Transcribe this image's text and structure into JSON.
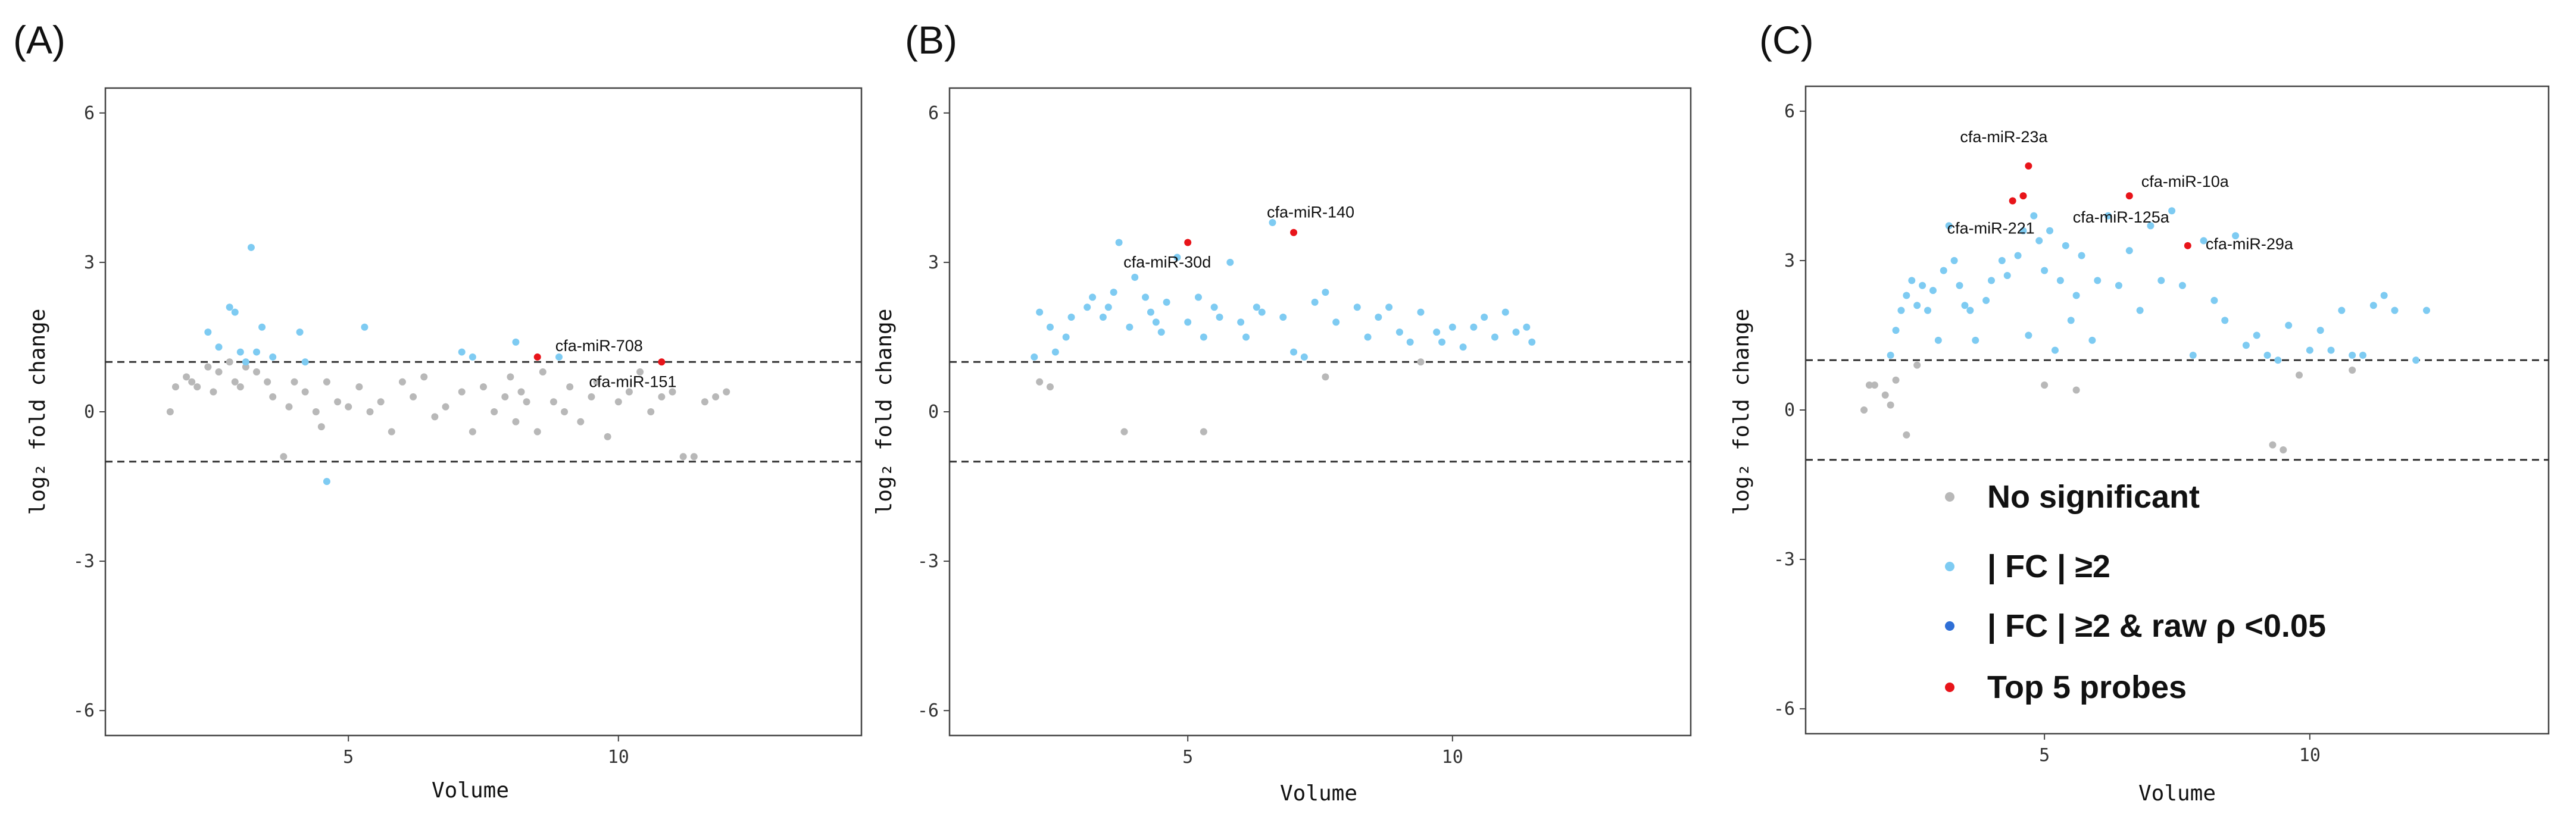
{
  "colors": {
    "no_significant": "#b8b8b8",
    "fc2": "#7ecbf2",
    "fc2_p": "#2f6fd6",
    "top5": "#e8141a"
  },
  "legend": {
    "items": [
      {
        "label": "No significant",
        "color": "#b8b8b8"
      },
      {
        "label": "| FC | ≥2",
        "color": "#7ecbf2"
      },
      {
        "label": "| FC | ≥2 & raw ρ <0.05",
        "color": "#2f6fd6"
      },
      {
        "label": "Top 5 probes",
        "color": "#e8141a"
      }
    ]
  },
  "chart_data": [
    {
      "type": "scatter",
      "panel": "(A)",
      "title": "",
      "xlabel": "Volume",
      "ylabel": "log₂ fold change",
      "xlim": [
        0.5,
        14.5
      ],
      "ylim": [
        -6.5,
        6.5
      ],
      "xticks": [
        5,
        10
      ],
      "yticks": [
        6,
        3,
        0,
        -3,
        -6
      ],
      "hlines": [
        1,
        -1
      ],
      "series": [
        {
          "name": "No significant",
          "color": "#b8b8b8",
          "points": [
            [
              1.7,
              0.0
            ],
            [
              1.8,
              0.5
            ],
            [
              2.0,
              0.7
            ],
            [
              2.1,
              0.6
            ],
            [
              2.2,
              0.5
            ],
            [
              2.4,
              0.9
            ],
            [
              2.5,
              0.4
            ],
            [
              2.6,
              0.8
            ],
            [
              2.8,
              1.0
            ],
            [
              2.9,
              0.6
            ],
            [
              3.0,
              0.5
            ],
            [
              3.1,
              0.9
            ],
            [
              3.3,
              0.8
            ],
            [
              3.5,
              0.6
            ],
            [
              3.6,
              0.3
            ],
            [
              3.8,
              -0.9
            ],
            [
              3.9,
              0.1
            ],
            [
              4.0,
              0.6
            ],
            [
              4.2,
              0.4
            ],
            [
              4.4,
              0.0
            ],
            [
              4.5,
              -0.3
            ],
            [
              4.6,
              0.6
            ],
            [
              4.8,
              0.2
            ],
            [
              5.0,
              0.1
            ],
            [
              5.2,
              0.5
            ],
            [
              5.4,
              0.0
            ],
            [
              5.6,
              0.2
            ],
            [
              5.8,
              -0.4
            ],
            [
              6.0,
              0.6
            ],
            [
              6.2,
              0.3
            ],
            [
              6.4,
              0.7
            ],
            [
              6.6,
              -0.1
            ],
            [
              6.8,
              0.1
            ],
            [
              7.1,
              0.4
            ],
            [
              7.3,
              -0.4
            ],
            [
              7.5,
              0.5
            ],
            [
              7.7,
              0.0
            ],
            [
              7.9,
              0.3
            ],
            [
              8.0,
              0.7
            ],
            [
              8.1,
              -0.2
            ],
            [
              8.2,
              0.4
            ],
            [
              8.3,
              0.2
            ],
            [
              8.5,
              -0.4
            ],
            [
              8.6,
              0.8
            ],
            [
              8.8,
              0.2
            ],
            [
              9.0,
              0.0
            ],
            [
              9.1,
              0.5
            ],
            [
              9.3,
              -0.2
            ],
            [
              9.5,
              0.3
            ],
            [
              9.6,
              0.6
            ],
            [
              9.8,
              -0.5
            ],
            [
              10.0,
              0.2
            ],
            [
              10.2,
              0.4
            ],
            [
              10.4,
              0.8
            ],
            [
              10.6,
              0.0
            ],
            [
              10.8,
              0.3
            ],
            [
              11.0,
              0.4
            ],
            [
              11.2,
              -0.9
            ],
            [
              11.4,
              -0.9
            ],
            [
              11.6,
              0.2
            ],
            [
              11.8,
              0.3
            ],
            [
              12.0,
              0.4
            ]
          ]
        },
        {
          "name": "| FC | ≥2",
          "color": "#7ecbf2",
          "points": [
            [
              2.4,
              1.6
            ],
            [
              2.6,
              1.3
            ],
            [
              2.8,
              2.1
            ],
            [
              2.9,
              2.0
            ],
            [
              3.0,
              1.2
            ],
            [
              3.1,
              1.0
            ],
            [
              3.2,
              3.3
            ],
            [
              3.3,
              1.2
            ],
            [
              3.4,
              1.7
            ],
            [
              3.6,
              1.1
            ],
            [
              4.1,
              1.6
            ],
            [
              4.2,
              1.0
            ],
            [
              4.6,
              -1.4
            ],
            [
              5.3,
              1.7
            ],
            [
              7.1,
              1.2
            ],
            [
              7.3,
              1.1
            ],
            [
              8.1,
              1.4
            ],
            [
              8.9,
              1.1
            ]
          ]
        },
        {
          "name": "Top 5 probes",
          "color": "#e8141a",
          "points": [
            [
              8.5,
              1.1
            ],
            [
              10.8,
              1.0
            ]
          ]
        }
      ],
      "annotations": [
        {
          "text": "cfa-miR-708",
          "x": 8.5,
          "y": 1.1
        },
        {
          "text": "cfa-miR-151",
          "x": 10.8,
          "y": 1.0
        }
      ]
    },
    {
      "type": "scatter",
      "panel": "(B)",
      "title": "",
      "xlabel": "Volume",
      "ylabel": "log₂ fold change",
      "xlim": [
        0.5,
        14.5
      ],
      "ylim": [
        -6.5,
        6.5
      ],
      "xticks": [
        5,
        10
      ],
      "yticks": [
        6,
        3,
        0,
        -3,
        -6
      ],
      "hlines": [
        1,
        -1
      ],
      "series": [
        {
          "name": "No significant",
          "color": "#b8b8b8",
          "points": [
            [
              2.2,
              0.6
            ],
            [
              2.4,
              0.5
            ],
            [
              3.8,
              -0.4
            ],
            [
              5.3,
              -0.4
            ],
            [
              7.6,
              0.7
            ],
            [
              9.4,
              1.0
            ]
          ]
        },
        {
          "name": "| FC | ≥2",
          "color": "#7ecbf2",
          "points": [
            [
              2.1,
              1.1
            ],
            [
              2.2,
              2.0
            ],
            [
              2.4,
              1.7
            ],
            [
              2.5,
              1.2
            ],
            [
              2.7,
              1.5
            ],
            [
              2.8,
              1.9
            ],
            [
              3.1,
              2.1
            ],
            [
              3.2,
              2.3
            ],
            [
              3.4,
              1.9
            ],
            [
              3.5,
              2.1
            ],
            [
              3.6,
              2.4
            ],
            [
              3.7,
              3.4
            ],
            [
              3.9,
              1.7
            ],
            [
              4.0,
              2.7
            ],
            [
              4.2,
              2.3
            ],
            [
              4.3,
              2.0
            ],
            [
              4.4,
              1.8
            ],
            [
              4.5,
              1.6
            ],
            [
              4.6,
              2.2
            ],
            [
              4.8,
              3.1
            ],
            [
              5.0,
              1.8
            ],
            [
              5.2,
              2.3
            ],
            [
              5.3,
              1.5
            ],
            [
              5.5,
              2.1
            ],
            [
              5.6,
              1.9
            ],
            [
              5.8,
              3.0
            ],
            [
              6.0,
              1.8
            ],
            [
              6.1,
              1.5
            ],
            [
              6.3,
              2.1
            ],
            [
              6.4,
              2.0
            ],
            [
              6.6,
              3.8
            ],
            [
              6.8,
              1.9
            ],
            [
              7.0,
              1.2
            ],
            [
              7.2,
              1.1
            ],
            [
              7.4,
              2.2
            ],
            [
              7.6,
              2.4
            ],
            [
              7.8,
              1.8
            ],
            [
              8.2,
              2.1
            ],
            [
              8.4,
              1.5
            ],
            [
              8.6,
              1.9
            ],
            [
              8.8,
              2.1
            ],
            [
              9.0,
              1.6
            ],
            [
              9.2,
              1.4
            ],
            [
              9.4,
              2.0
            ],
            [
              9.7,
              1.6
            ],
            [
              9.8,
              1.4
            ],
            [
              10.0,
              1.7
            ],
            [
              10.2,
              1.3
            ],
            [
              10.4,
              1.7
            ],
            [
              10.6,
              1.9
            ],
            [
              10.8,
              1.5
            ],
            [
              11.0,
              2.0
            ],
            [
              11.2,
              1.6
            ],
            [
              11.4,
              1.7
            ],
            [
              11.5,
              1.4
            ]
          ]
        },
        {
          "name": "Top 5 probes",
          "color": "#e8141a",
          "points": [
            [
              5.0,
              3.4
            ],
            [
              7.0,
              3.6
            ]
          ]
        }
      ],
      "annotations": [
        {
          "text": "cfa-miR-30d",
          "x": 5.0,
          "y": 3.4
        },
        {
          "text": "cfa-miR-140",
          "x": 7.0,
          "y": 3.6
        }
      ]
    },
    {
      "type": "scatter",
      "panel": "(C)",
      "title": "",
      "xlabel": "Volume",
      "ylabel": "log₂ fold change",
      "xlim": [
        0.5,
        14.5
      ],
      "ylim": [
        -6.5,
        6.5
      ],
      "xticks": [
        5,
        10
      ],
      "yticks": [
        6,
        3,
        0,
        -3,
        -6
      ],
      "hlines": [
        1,
        -1
      ],
      "series": [
        {
          "name": "No significant",
          "color": "#b8b8b8",
          "points": [
            [
              1.6,
              0.0
            ],
            [
              1.7,
              0.5
            ],
            [
              1.8,
              0.5
            ],
            [
              2.0,
              0.3
            ],
            [
              2.1,
              0.1
            ],
            [
              2.2,
              0.6
            ],
            [
              2.4,
              -0.5
            ],
            [
              2.6,
              0.9
            ],
            [
              5.0,
              0.5
            ],
            [
              5.6,
              0.4
            ],
            [
              9.3,
              -0.7
            ],
            [
              9.5,
              -0.8
            ],
            [
              9.8,
              0.7
            ],
            [
              10.8,
              0.8
            ]
          ]
        },
        {
          "name": "| FC | ≥2",
          "color": "#7ecbf2",
          "points": [
            [
              2.1,
              1.1
            ],
            [
              2.2,
              1.6
            ],
            [
              2.3,
              2.0
            ],
            [
              2.4,
              2.3
            ],
            [
              2.5,
              2.6
            ],
            [
              2.6,
              2.1
            ],
            [
              2.7,
              2.5
            ],
            [
              2.8,
              2.0
            ],
            [
              2.9,
              2.4
            ],
            [
              3.0,
              1.4
            ],
            [
              3.1,
              2.8
            ],
            [
              3.2,
              3.7
            ],
            [
              3.3,
              3.0
            ],
            [
              3.4,
              2.5
            ],
            [
              3.5,
              2.1
            ],
            [
              3.6,
              2.0
            ],
            [
              3.7,
              1.4
            ],
            [
              3.9,
              2.2
            ],
            [
              4.0,
              2.6
            ],
            [
              4.2,
              3.0
            ],
            [
              4.3,
              2.7
            ],
            [
              4.5,
              3.1
            ],
            [
              4.6,
              3.6
            ],
            [
              4.7,
              1.5
            ],
            [
              4.8,
              3.9
            ],
            [
              4.9,
              3.4
            ],
            [
              5.0,
              2.8
            ],
            [
              5.1,
              3.6
            ],
            [
              5.2,
              1.2
            ],
            [
              5.3,
              2.6
            ],
            [
              5.4,
              3.3
            ],
            [
              5.5,
              1.8
            ],
            [
              5.6,
              2.3
            ],
            [
              5.7,
              3.1
            ],
            [
              5.9,
              1.4
            ],
            [
              6.0,
              2.6
            ],
            [
              6.2,
              3.9
            ],
            [
              6.4,
              2.5
            ],
            [
              6.6,
              3.2
            ],
            [
              6.8,
              2.0
            ],
            [
              7.0,
              3.7
            ],
            [
              7.2,
              2.6
            ],
            [
              7.4,
              4.0
            ],
            [
              7.6,
              2.5
            ],
            [
              7.8,
              1.1
            ],
            [
              8.0,
              3.4
            ],
            [
              8.2,
              2.2
            ],
            [
              8.4,
              1.8
            ],
            [
              8.6,
              3.5
            ],
            [
              8.8,
              1.3
            ],
            [
              9.0,
              1.5
            ],
            [
              9.2,
              1.1
            ],
            [
              9.4,
              1.0
            ],
            [
              9.6,
              1.7
            ],
            [
              10.0,
              1.2
            ],
            [
              10.2,
              1.6
            ],
            [
              10.4,
              1.2
            ],
            [
              10.6,
              2.0
            ],
            [
              10.8,
              1.1
            ],
            [
              11.0,
              1.1
            ],
            [
              11.2,
              2.1
            ],
            [
              11.4,
              2.3
            ],
            [
              11.6,
              2.0
            ],
            [
              12.0,
              1.0
            ],
            [
              12.2,
              2.0
            ]
          ]
        },
        {
          "name": "Top 5 probes",
          "color": "#e8141a",
          "points": [
            [
              4.4,
              4.2
            ],
            [
              4.6,
              4.3
            ],
            [
              4.7,
              4.9
            ],
            [
              6.6,
              4.3
            ],
            [
              7.7,
              3.3
            ]
          ]
        }
      ],
      "annotations": [
        {
          "text": "cfa-miR-23a",
          "x": 4.7,
          "y": 4.9
        },
        {
          "text": "cfa-miR-10a",
          "x": 6.6,
          "y": 4.3
        },
        {
          "text": "cfa-miR-221",
          "x": 4.4,
          "y": 4.2
        },
        {
          "text": "cfa-miR-125a",
          "x": 6.6,
          "y": 4.3
        },
        {
          "text": "cfa-miR-29a",
          "x": 7.7,
          "y": 3.3
        }
      ]
    }
  ]
}
